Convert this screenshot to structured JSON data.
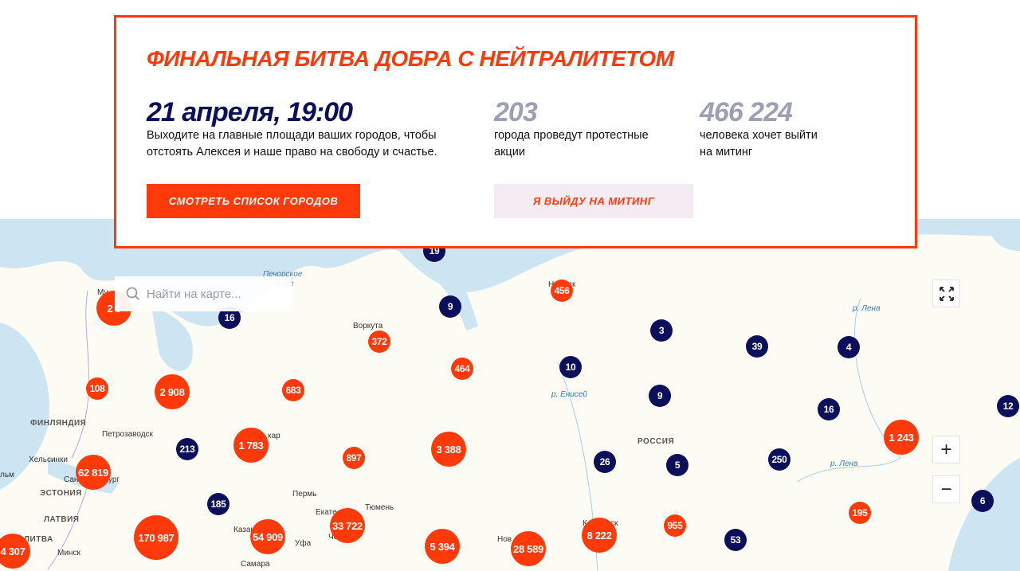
{
  "panel": {
    "title": "ФИНАЛЬНАЯ БИТВА ДОБРА С НЕЙТРАЛИТЕТОМ",
    "date": "21 апреля, 19:00",
    "date_desc_1": "Выходите на главные площади ваших городов, чтобы",
    "date_desc_2": "отстоять Алексея и наше право на свободу и счастье.",
    "cities_count": "203",
    "cities_desc_1": "города проведут протестные",
    "cities_desc_2": "акции",
    "people_count": "466 224",
    "people_desc_1": "человека хочет выйти",
    "people_desc_2": "на митинг",
    "list_button": "СМОТРЕТЬ СПИСОК ГОРОДОВ",
    "join_button": "Я ВЫЙДУ НА МИТИНГ"
  },
  "colors": {
    "accent": "#ff3a0a",
    "navy": "#0c0f5a",
    "grey": "#9d9fb3",
    "join_bg": "#f5ebf2",
    "water": "#cde5f3",
    "land": "#fdfcf4"
  },
  "map": {
    "search_placeholder": "Найти на карте...",
    "search_icon": "search-icon",
    "fullscreen_icon": "fullscreen-icon",
    "zoom_in": "+",
    "zoom_out": "−",
    "labels": [
      "Печорское",
      "море",
      "Воркута",
      "ФИНЛЯНДИЯ",
      "Петрозаводск",
      "Хельсинки",
      "ЭСТОНИЯ",
      "ЛАТВИЯ",
      "ЛИТВА",
      "Минск",
      "Пермь",
      "Тюмень",
      "Уфа",
      "Самара",
      "РОССИЯ",
      "р. Енисей",
      "р. Лена",
      "р. Лена",
      "Казан",
      "Екате",
      "Че",
      "Сан",
      "ург",
      "кар",
      "Му",
      "Нов",
      "К",
      "ск",
      "Н",
      "ск",
      "льм"
    ],
    "markers": [
      {
        "value": "19",
        "type": "blue"
      },
      {
        "value": "2 0",
        "type": "red"
      },
      {
        "value": "16",
        "type": "blue"
      },
      {
        "value": "9",
        "type": "blue"
      },
      {
        "value": "456",
        "type": "red"
      },
      {
        "value": "372",
        "type": "red"
      },
      {
        "value": "464",
        "type": "red"
      },
      {
        "value": "3",
        "type": "blue"
      },
      {
        "value": "39",
        "type": "blue"
      },
      {
        "value": "4",
        "type": "blue"
      },
      {
        "value": "10",
        "type": "blue"
      },
      {
        "value": "108",
        "type": "red"
      },
      {
        "value": "2 908",
        "type": "red"
      },
      {
        "value": "683",
        "type": "red"
      },
      {
        "value": "9",
        "type": "blue"
      },
      {
        "value": "16",
        "type": "blue"
      },
      {
        "value": "12",
        "type": "blue"
      },
      {
        "value": "1 243",
        "type": "red"
      },
      {
        "value": "213",
        "type": "blue"
      },
      {
        "value": "1 783",
        "type": "red"
      },
      {
        "value": "897",
        "type": "red"
      },
      {
        "value": "3 388",
        "type": "red"
      },
      {
        "value": "26",
        "type": "blue"
      },
      {
        "value": "5",
        "type": "blue"
      },
      {
        "value": "250",
        "type": "blue"
      },
      {
        "value": "62 819",
        "type": "red"
      },
      {
        "value": "185",
        "type": "blue"
      },
      {
        "value": "195",
        "type": "red"
      },
      {
        "value": "6",
        "type": "blue"
      },
      {
        "value": "170 987",
        "type": "red"
      },
      {
        "value": "54 909",
        "type": "red"
      },
      {
        "value": "33 722",
        "type": "red"
      },
      {
        "value": "5 394",
        "type": "red"
      },
      {
        "value": "28 589",
        "type": "red"
      },
      {
        "value": "8 222",
        "type": "red"
      },
      {
        "value": "955",
        "type": "red"
      },
      {
        "value": "53",
        "type": "blue"
      },
      {
        "value": "4 307",
        "type": "red"
      }
    ]
  }
}
